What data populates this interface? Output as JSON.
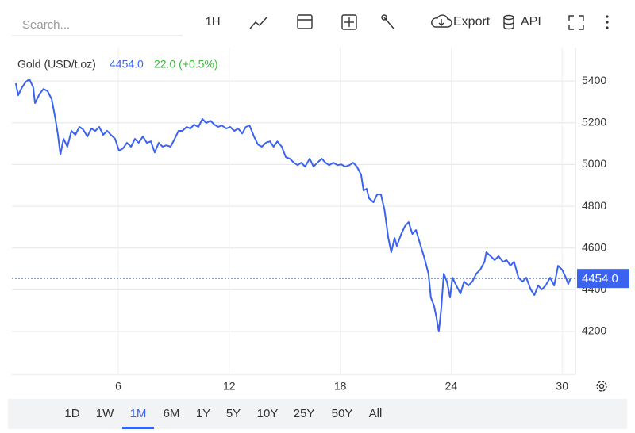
{
  "toolbar": {
    "search_placeholder": "Search...",
    "interval": "1H",
    "export": "Export",
    "api": "API"
  },
  "chart_data": {
    "type": "line",
    "x": [
      0.46,
      0.59,
      0.8,
      1.0,
      1.2,
      1.4,
      1.5,
      1.75,
      1.96,
      2.18,
      2.4,
      2.6,
      2.74,
      2.87,
      3.04,
      3.25,
      3.47,
      3.68,
      3.9,
      4.1,
      4.33,
      4.54,
      4.76,
      4.97,
      5.18,
      5.4,
      5.6,
      5.83,
      6.04,
      6.26,
      6.47,
      6.69,
      6.9,
      7.1,
      7.33,
      7.54,
      7.76,
      7.97,
      8.19,
      8.4,
      8.6,
      8.83,
      9.05,
      9.26,
      9.47,
      9.7,
      9.9,
      10.1,
      10.33,
      10.55,
      10.76,
      10.98,
      11.2,
      11.4,
      11.6,
      11.84,
      12.05,
      12.27,
      12.48,
      12.7,
      12.9,
      13.1,
      13.34,
      13.55,
      13.76,
      13.98,
      14.2,
      14.4,
      14.6,
      14.84,
      15.06,
      15.27,
      15.5,
      15.7,
      15.9,
      16.1,
      16.35,
      16.56,
      16.77,
      17.0,
      17.2,
      17.4,
      17.63,
      17.85,
      18.06,
      18.28,
      18.5,
      18.7,
      18.9,
      19.13,
      19.26,
      19.43,
      19.56,
      19.8,
      20.0,
      20.2,
      20.4,
      20.6,
      20.76,
      20.94,
      21.06,
      21.3,
      21.5,
      21.7,
      21.9,
      22.1,
      22.35,
      22.55,
      22.77,
      22.9,
      23.07,
      23.2,
      23.33,
      23.46,
      23.6,
      23.77,
      23.94,
      24.07,
      24.28,
      24.5,
      24.7,
      24.93,
      25.14,
      25.36,
      25.57,
      25.8,
      25.9,
      26.1,
      26.35,
      26.56,
      26.8,
      27.0,
      27.2,
      27.4,
      27.64,
      27.86,
      28.06,
      28.3,
      28.5,
      28.7,
      28.9,
      29.1,
      29.35,
      29.57,
      29.78,
      30.0,
      30.2,
      30.33,
      30.45
    ],
    "series": [
      {
        "name": "Gold (USD/t.oz)",
        "color": "#3b63f0",
        "values": [
          5389,
          5332,
          5370,
          5396,
          5408,
          5370,
          5294,
          5339,
          5362,
          5351,
          5313,
          5218,
          5142,
          5047,
          5123,
          5085,
          5161,
          5142,
          5180,
          5168,
          5134,
          5172,
          5161,
          5180,
          5142,
          5161,
          5142,
          5123,
          5066,
          5077,
          5104,
          5085,
          5123,
          5104,
          5134,
          5104,
          5111,
          5058,
          5104,
          5085,
          5092,
          5085,
          5123,
          5161,
          5161,
          5180,
          5172,
          5191,
          5180,
          5218,
          5199,
          5210,
          5191,
          5180,
          5187,
          5172,
          5180,
          5161,
          5172,
          5149,
          5180,
          5187,
          5134,
          5096,
          5085,
          5104,
          5111,
          5085,
          5111,
          5085,
          5035,
          5028,
          5009,
          4997,
          5009,
          4990,
          5028,
          4990,
          5009,
          5028,
          5009,
          4997,
          5009,
          4997,
          5001,
          4990,
          4997,
          5009,
          4990,
          4952,
          4876,
          4884,
          4838,
          4819,
          4857,
          4857,
          4781,
          4648,
          4580,
          4648,
          4610,
          4667,
          4705,
          4724,
          4667,
          4686,
          4610,
          4553,
          4477,
          4363,
          4325,
          4268,
          4200,
          4306,
          4477,
          4439,
          4363,
          4458,
          4420,
          4382,
          4439,
          4420,
          4439,
          4477,
          4496,
          4534,
          4580,
          4564,
          4542,
          4561,
          4534,
          4542,
          4515,
          4534,
          4458,
          4439,
          4458,
          4401,
          4375,
          4420,
          4401,
          4420,
          4458,
          4420,
          4515,
          4496,
          4458,
          4428,
          4454
        ]
      }
    ],
    "last_price": {
      "value": 4454,
      "label": "4454.0"
    },
    "change_label": "22.0 (+0.5%)",
    "change_color": "#3cb83c",
    "xlim": [
      0.25,
      30.72
    ],
    "ylim": [
      3995,
      5484
    ],
    "xticks": [
      6,
      12,
      18,
      24,
      30
    ],
    "yticks": [
      4200,
      4400,
      4600,
      4800,
      5000,
      5200,
      5400
    ],
    "grid": true
  },
  "range_buttons": {
    "options": [
      "1D",
      "1W",
      "1M",
      "6M",
      "1Y",
      "5Y",
      "10Y",
      "25Y",
      "50Y",
      "All"
    ],
    "active_index": 2
  }
}
